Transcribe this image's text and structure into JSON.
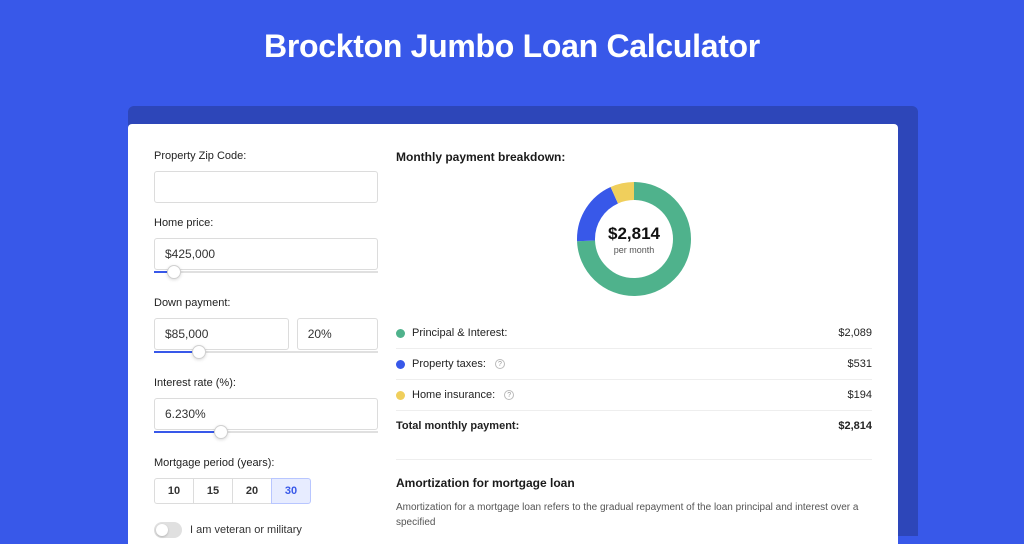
{
  "theme": {
    "background": "#3858e9",
    "panel_bg": "#ffffff",
    "accent": "#3858e9",
    "text_primary": "#1a1a1a",
    "border": "#dcdcdc"
  },
  "title": "Brockton Jumbo Loan Calculator",
  "form": {
    "zip": {
      "label": "Property Zip Code:",
      "value": ""
    },
    "home_price": {
      "label": "Home price:",
      "value": "$425,000",
      "slider_pct": 9
    },
    "down_payment": {
      "label": "Down payment:",
      "amount": "$85,000",
      "percent": "20%",
      "slider_pct": 20
    },
    "interest_rate": {
      "label": "Interest rate (%):",
      "value": "6.230%",
      "slider_pct": 30
    },
    "mortgage_period": {
      "label": "Mortgage period (years):",
      "options": [
        "10",
        "15",
        "20",
        "30"
      ],
      "selected": "30"
    },
    "veteran": {
      "label": "I am veteran or military",
      "enabled": false
    }
  },
  "breakdown": {
    "heading": "Monthly payment breakdown:",
    "donut": {
      "amount": "$2,814",
      "sub": "per month",
      "segments": [
        {
          "key": "principal_interest",
          "value": 2089,
          "color": "#4fb28c"
        },
        {
          "key": "property_taxes",
          "value": 531,
          "color": "#3858e9"
        },
        {
          "key": "home_insurance",
          "value": 194,
          "color": "#f0cf5c"
        }
      ]
    },
    "rows": [
      {
        "label": "Principal & Interest:",
        "value": "$2,089",
        "color": "#4fb28c",
        "info": false
      },
      {
        "label": "Property taxes:",
        "value": "$531",
        "color": "#3858e9",
        "info": true
      },
      {
        "label": "Home insurance:",
        "value": "$194",
        "color": "#f0cf5c",
        "info": true
      }
    ],
    "total": {
      "label": "Total monthly payment:",
      "value": "$2,814"
    }
  },
  "amortization": {
    "title": "Amortization for mortgage loan",
    "text": "Amortization for a mortgage loan refers to the gradual repayment of the loan principal and interest over a specified"
  }
}
